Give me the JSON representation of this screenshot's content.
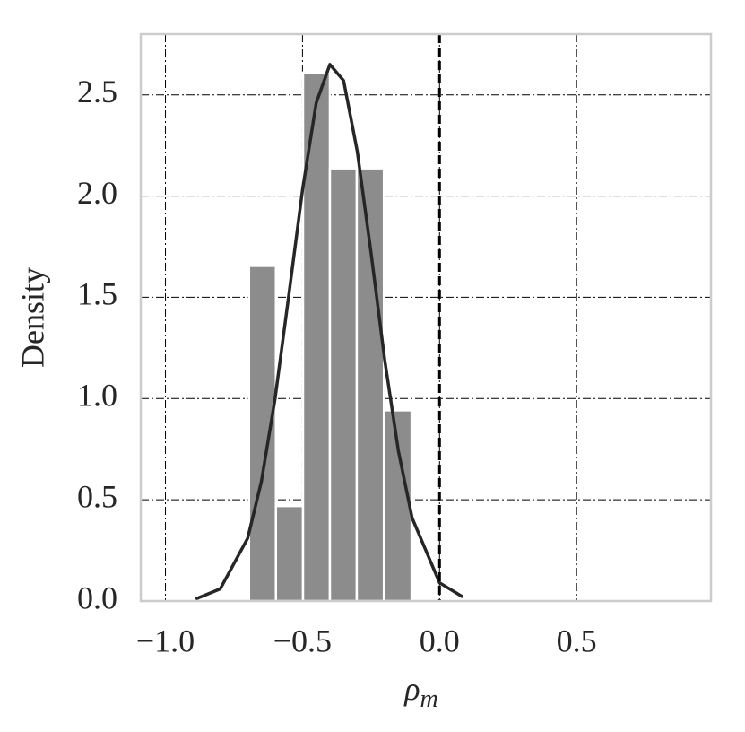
{
  "chart_data": {
    "type": "histogram",
    "x_label": {
      "symbol": "ρ",
      "subscript": "m"
    },
    "y_label": "Density",
    "bins": [
      -0.695,
      -0.597,
      -0.498,
      -0.4,
      -0.302,
      -0.203,
      -0.102
    ],
    "values": [
      1.655,
      0.469,
      2.61,
      2.137,
      2.137,
      0.942
    ],
    "color": "#8c8c8c",
    "density_curve": {
      "color": "#262626",
      "x": [
        -0.89,
        -0.8,
        -0.7,
        -0.65,
        -0.6,
        -0.55,
        -0.5,
        -0.45,
        -0.4,
        -0.35,
        -0.3,
        -0.25,
        -0.2,
        -0.15,
        -0.1,
        0.0,
        0.085
      ],
      "values": [
        0.01,
        0.06,
        0.31,
        0.59,
        1.0,
        1.51,
        2.03,
        2.46,
        2.65,
        2.57,
        2.22,
        1.72,
        1.19,
        0.74,
        0.41,
        0.09,
        0.02
      ]
    },
    "vline": 0,
    "xlim": [
      -1.09,
      0.99
    ],
    "ylim": [
      0,
      2.8
    ],
    "xticks": [
      {
        "value": -1,
        "label": "−1.0"
      },
      {
        "value": -0.5,
        "label": "−0.5"
      },
      {
        "value": 0,
        "label": "0.0"
      },
      0.5
    ],
    "yticks": [
      {
        "value": 0,
        "label": "0.0"
      },
      0.5,
      {
        "value": 1,
        "label": "1.0"
      },
      1.5,
      {
        "value": 2,
        "label": "2.0"
      },
      2.5
    ],
    "grid": true
  }
}
